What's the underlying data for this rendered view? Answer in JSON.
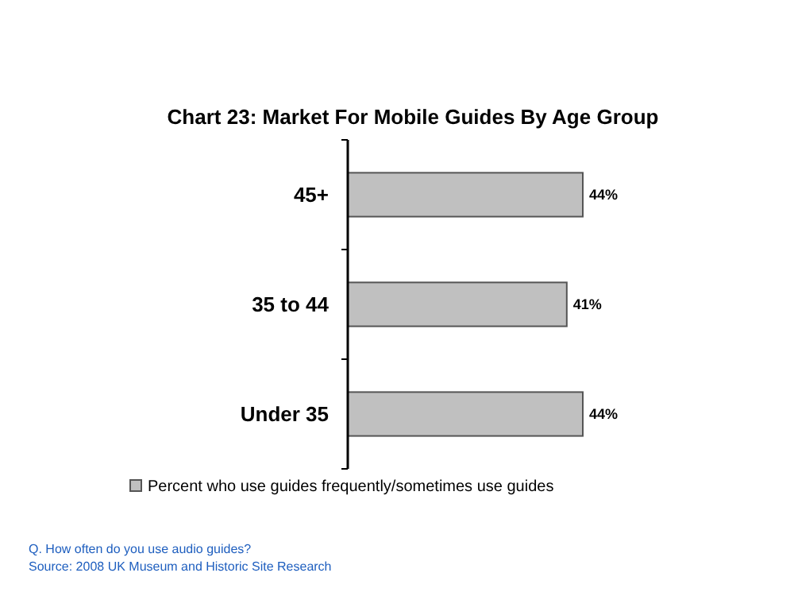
{
  "chart_data": {
    "type": "bar",
    "orientation": "horizontal",
    "title": "Chart 23: Market For Mobile Guides By Age Group",
    "categories": [
      "45+",
      "35 to 44",
      "Under 35"
    ],
    "series": [
      {
        "name": "Percent who use guides frequently/sometimes use guides",
        "color": "#c0c0c0",
        "values": [
          44,
          41,
          44
        ],
        "value_labels": [
          "44%",
          "41%",
          "44%"
        ]
      }
    ],
    "tick_labels": "y",
    "legend": "bottom",
    "annotations": [
      "Q. How often do you use audio guides?",
      "Source: 2008 UK Museum and Historic Site Research"
    ]
  }
}
